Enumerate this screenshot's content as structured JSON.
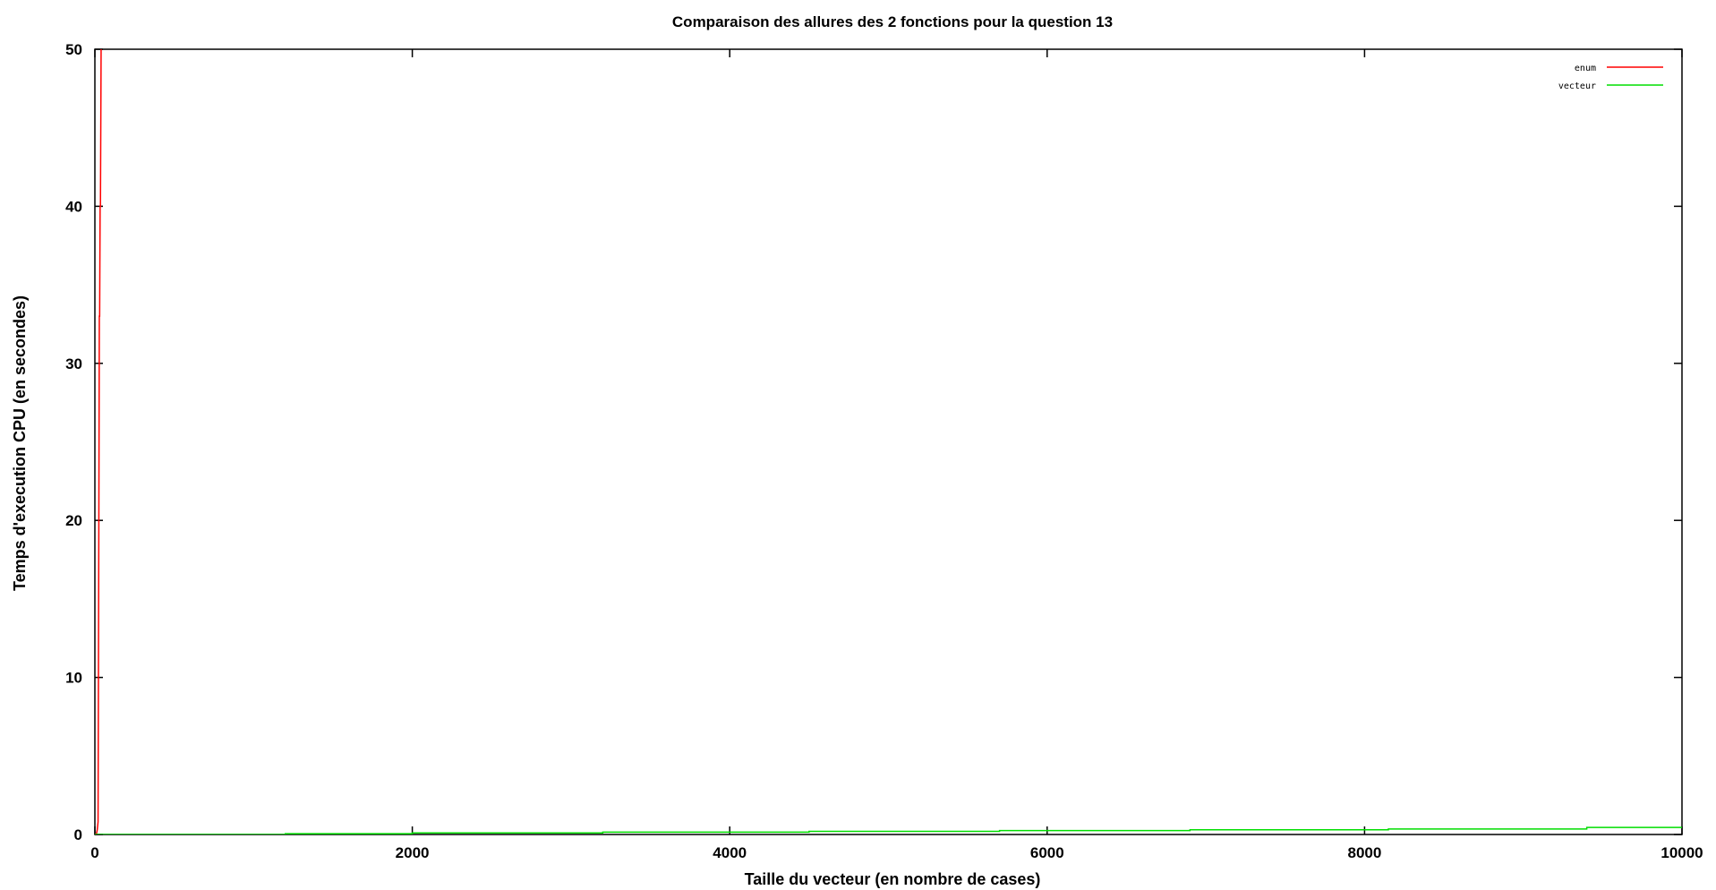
{
  "chart_data": {
    "type": "line",
    "title": "Comparaison des allures des 2 fonctions pour la question 13",
    "xlabel": "Taille du vecteur (en nombre de cases)",
    "ylabel": "Temps d'execution CPU (en secondes)",
    "xlim": [
      0,
      10000
    ],
    "ylim": [
      0,
      50
    ],
    "xticks": [
      0,
      2000,
      4000,
      6000,
      8000,
      10000
    ],
    "yticks": [
      0,
      10,
      20,
      30,
      40,
      50
    ],
    "grid": false,
    "legend_position": "top-right",
    "series": [
      {
        "name": "enum",
        "color": "#ff0000",
        "x": [
          0,
          10,
          15,
          20,
          22,
          25,
          28,
          30,
          33,
          35,
          38,
          40
        ],
        "y": [
          0,
          0.05,
          0.3,
          0.8,
          8.5,
          20,
          33,
          33,
          40,
          40,
          47,
          52
        ]
      },
      {
        "name": "vecteur",
        "color": "#00dd00",
        "x": [
          0,
          1200,
          1200,
          2000,
          2000,
          3200,
          3200,
          4500,
          4500,
          5700,
          5700,
          6900,
          6900,
          8150,
          8150,
          9400,
          9400,
          10000
        ],
        "y": [
          0,
          0,
          0.05,
          0.05,
          0.1,
          0.1,
          0.15,
          0.15,
          0.2,
          0.2,
          0.25,
          0.25,
          0.3,
          0.3,
          0.35,
          0.35,
          0.45,
          0.45
        ]
      }
    ]
  }
}
